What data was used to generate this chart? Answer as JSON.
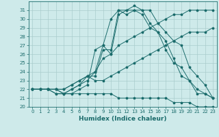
{
  "xlabel": "Humidex (Indice chaleur)",
  "xlim": [
    -0.5,
    23.5
  ],
  "ylim": [
    20,
    32
  ],
  "yticks": [
    20,
    21,
    22,
    23,
    24,
    25,
    26,
    27,
    28,
    29,
    30,
    31
  ],
  "xticks": [
    0,
    1,
    2,
    3,
    4,
    5,
    6,
    7,
    8,
    9,
    10,
    11,
    12,
    13,
    14,
    15,
    16,
    17,
    18,
    19,
    20,
    21,
    22,
    23
  ],
  "bg_color": "#ceeaea",
  "grid_color": "#aacccc",
  "line_color": "#1a6b6b",
  "line1": [
    22.0,
    22.0,
    22.0,
    22.0,
    21.5,
    21.5,
    22.0,
    22.5,
    26.5,
    27.0,
    30.0,
    31.0,
    31.0,
    31.0,
    31.0,
    29.5,
    28.5,
    27.5,
    25.5,
    23.5,
    23.0,
    21.5,
    21.5,
    21.0
  ],
  "line2": [
    22.0,
    22.0,
    22.0,
    22.0,
    21.5,
    22.0,
    22.5,
    23.5,
    23.5,
    26.5,
    26.5,
    31.0,
    30.5,
    31.0,
    30.5,
    29.0,
    28.5,
    26.5,
    25.0,
    24.5,
    23.0,
    22.0,
    21.5,
    21.0
  ],
  "line3": [
    22.0,
    22.0,
    22.0,
    22.0,
    22.0,
    22.5,
    23.0,
    23.5,
    24.0,
    25.5,
    26.0,
    27.0,
    27.5,
    28.0,
    28.5,
    29.0,
    29.5,
    30.0,
    30.5,
    30.5,
    31.0,
    31.0,
    31.0,
    31.0
  ],
  "line4": [
    22.0,
    22.0,
    22.0,
    21.5,
    21.5,
    22.0,
    22.5,
    23.0,
    24.0,
    27.0,
    26.0,
    30.5,
    31.0,
    31.5,
    31.0,
    31.0,
    29.5,
    28.5,
    27.5,
    27.0,
    24.5,
    23.5,
    22.5,
    21.0
  ],
  "line5": [
    22.0,
    22.0,
    22.0,
    22.0,
    22.0,
    22.5,
    23.0,
    23.5,
    23.0,
    23.0,
    23.5,
    24.0,
    24.5,
    25.0,
    25.5,
    26.0,
    26.5,
    27.0,
    27.5,
    28.0,
    28.5,
    28.5,
    28.5,
    29.0
  ],
  "line6": [
    22.0,
    22.0,
    22.0,
    21.5,
    21.5,
    21.5,
    21.5,
    21.5,
    21.5,
    21.5,
    21.5,
    21.0,
    21.0,
    21.0,
    21.0,
    21.0,
    21.0,
    21.0,
    20.5,
    20.5,
    20.5,
    20.0,
    20.0,
    20.0
  ]
}
